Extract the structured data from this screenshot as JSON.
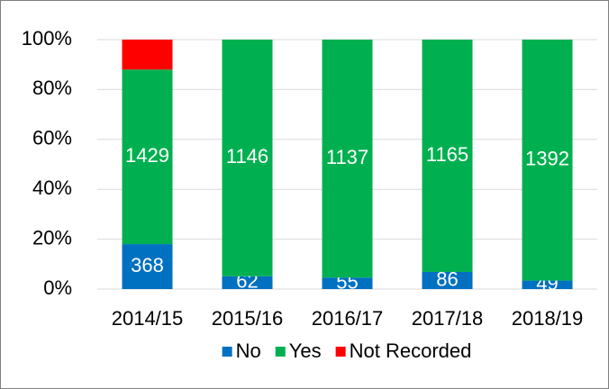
{
  "chart_data": {
    "type": "bar",
    "stacking": "percent",
    "categories": [
      "2014/15",
      "2015/16",
      "2016/17",
      "2017/18",
      "2018/19"
    ],
    "series": [
      {
        "name": "No",
        "color": "#0070c0",
        "values": [
          368,
          62,
          55,
          86,
          49
        ]
      },
      {
        "name": "Yes",
        "color": "#00b050",
        "values": [
          1429,
          1146,
          1137,
          1165,
          1392
        ]
      },
      {
        "name": "Not Recorded",
        "color": "#ff0000",
        "values": [
          245,
          0,
          0,
          0,
          0
        ]
      }
    ],
    "data_labels": [
      "No",
      "Yes"
    ],
    "ylim": [
      0,
      100
    ],
    "yticks": [
      {
        "value": 0,
        "label": "0%"
      },
      {
        "value": 20,
        "label": "20%"
      },
      {
        "value": 40,
        "label": "40%"
      },
      {
        "value": 60,
        "label": "60%"
      },
      {
        "value": 80,
        "label": "80%"
      },
      {
        "value": 100,
        "label": "100%"
      }
    ],
    "grid": true,
    "legend": "bottom"
  }
}
